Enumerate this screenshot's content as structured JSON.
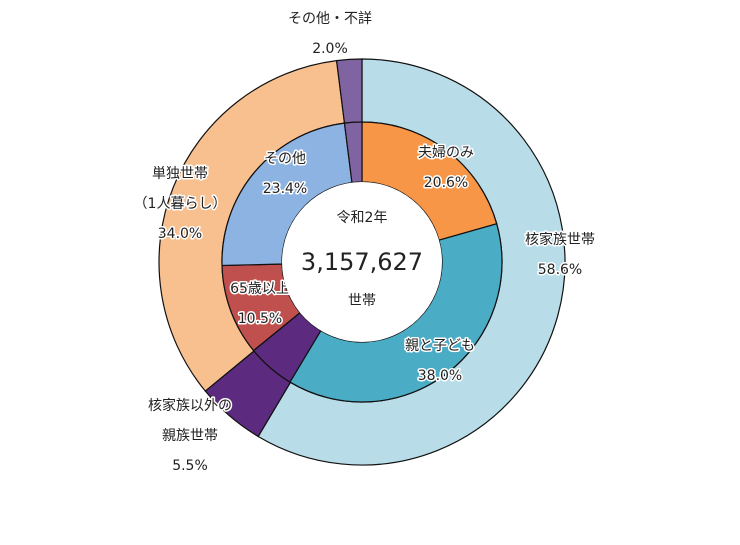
{
  "chart_data": {
    "type": "pie",
    "variant": "nested-donut",
    "center": {
      "line1": "令和2年",
      "total": "3,157,627",
      "line3": "世帯"
    },
    "outer_ring": [
      {
        "name": "核家族世帯",
        "label_lines": [
          "核家族世帯"
        ],
        "value": 58.6,
        "value_label": "58.6%",
        "color": "#b8dde8"
      },
      {
        "name": "核家族以外の親族世帯",
        "label_lines": [
          "核家族以外の",
          "親族世帯"
        ],
        "value": 5.5,
        "value_label": "5.5%",
        "color": "#5c2a7e"
      },
      {
        "name": "単独世帯（1人暮らし）",
        "label_lines": [
          "単独世帯",
          "（1人暮らし）"
        ],
        "value": 34.0,
        "value_label": "34.0%",
        "color": "#f8c08e"
      },
      {
        "name": "その他・不詳",
        "label_lines": [
          "その他・不詳"
        ],
        "value": 2.0,
        "value_label": "2.0%",
        "color": "#8064a2"
      }
    ],
    "inner_ring": [
      {
        "name": "夫婦のみ",
        "label_lines": [
          "夫婦のみ"
        ],
        "value": 20.6,
        "value_label": "20.6%",
        "color": "#f79646"
      },
      {
        "name": "親と子ども",
        "label_lines": [
          "親と子ども"
        ],
        "value": 38.0,
        "value_label": "38.0%",
        "color": "#4bacc6"
      },
      {
        "name": "核家族以外の親族世帯",
        "label_lines": [],
        "value": 5.5,
        "value_label": "",
        "color": "#5c2a7e"
      },
      {
        "name": "65歳以上",
        "label_lines": [
          "65歳以上"
        ],
        "value": 10.5,
        "value_label": "10.5%",
        "color": "#c0504d"
      },
      {
        "name": "その他",
        "label_lines": [
          "その他"
        ],
        "value": 23.4,
        "value_label": "23.4%",
        "color": "#8db3e2"
      },
      {
        "name": "その他・不詳",
        "label_lines": [],
        "value": 2.0,
        "value_label": "",
        "color": "#8064a2"
      }
    ]
  }
}
